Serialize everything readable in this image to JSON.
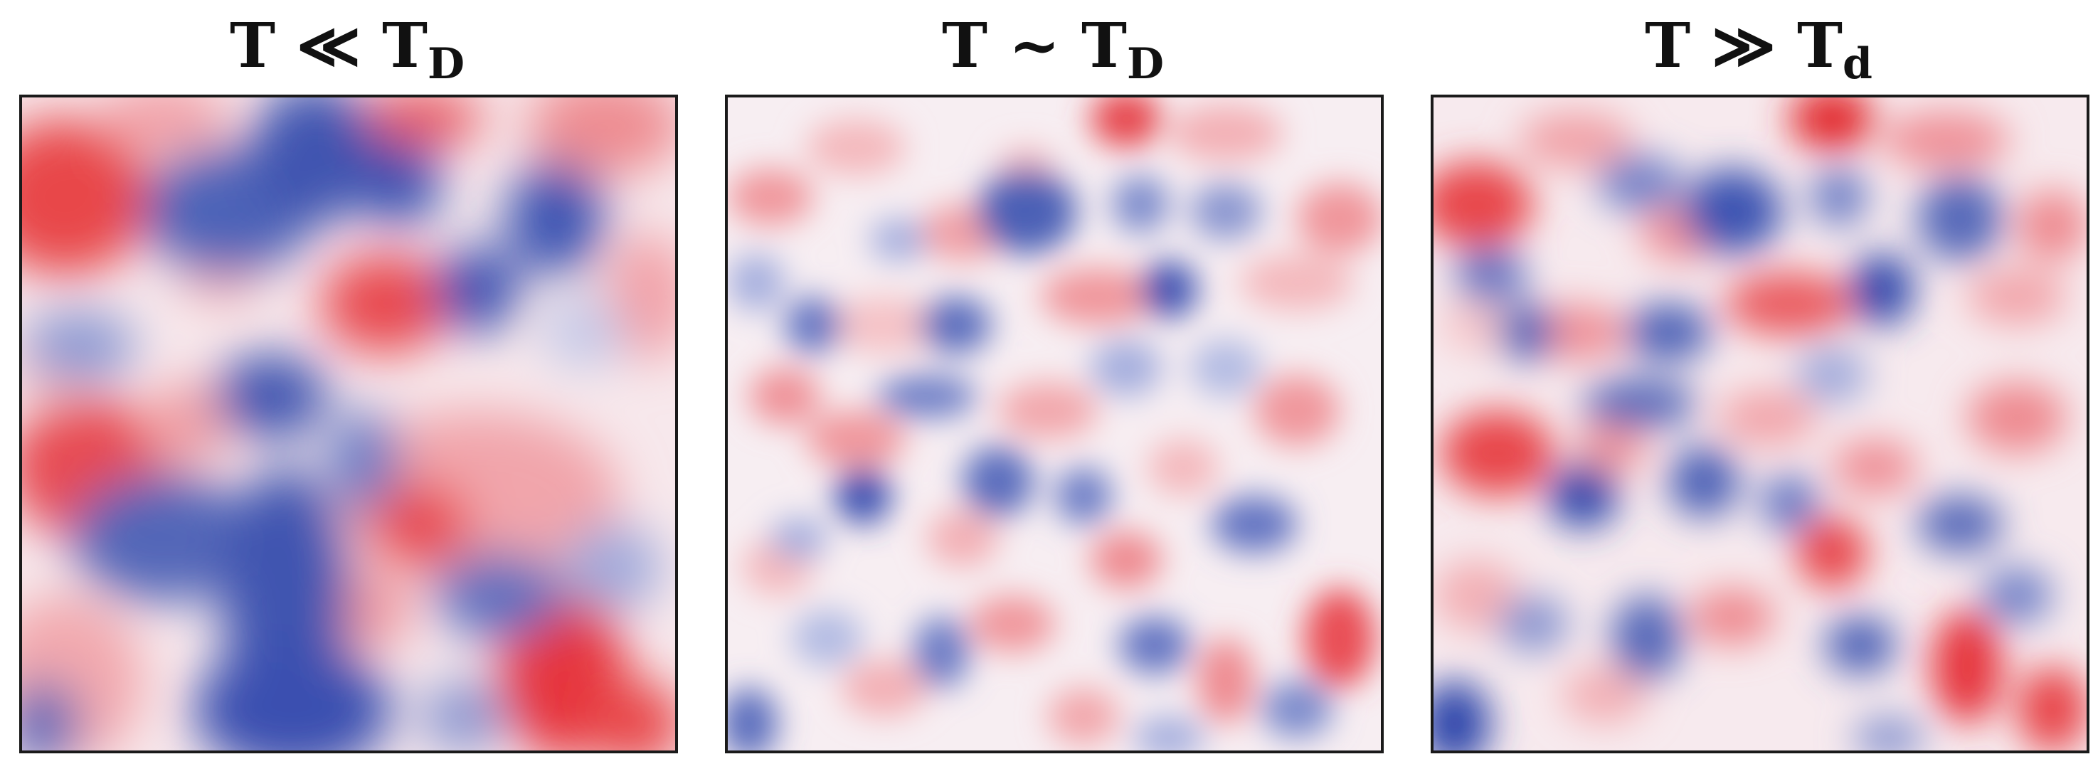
{
  "panels": [
    {
      "title_main": "T ≪ T",
      "title_sub": "D"
    },
    {
      "title_main": "T ~ T",
      "title_sub": "D"
    },
    {
      "title_main": "T ≫ T",
      "title_sub": "d"
    }
  ],
  "colors": {
    "positive": "#e62a2a",
    "negative": "#3a4fb0",
    "neutral": "#ffffff",
    "frame": "#1a1a1a"
  }
}
